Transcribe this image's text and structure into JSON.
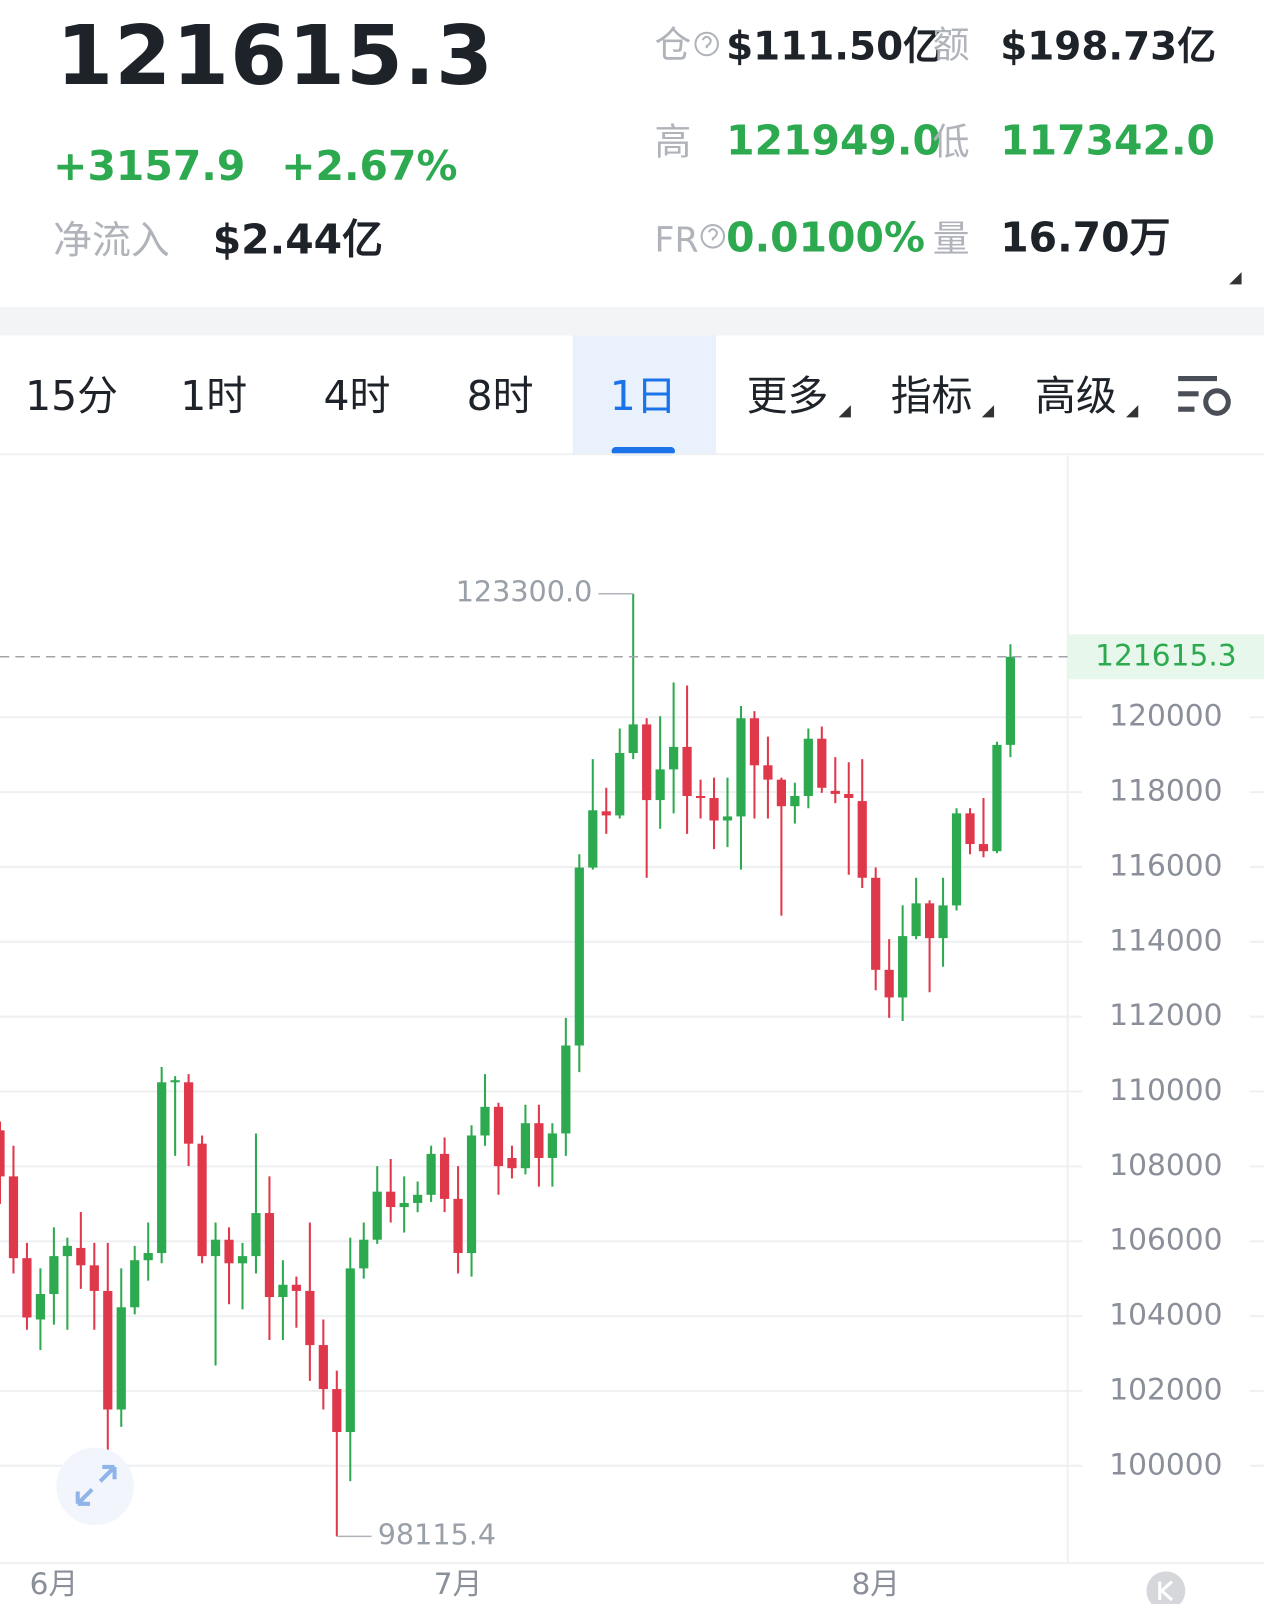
{
  "header": {
    "price": "121615.3",
    "change": "+3157.9",
    "change_pct": "+2.67%",
    "net_inflow_label": "净流入",
    "net_inflow": "$2.44亿",
    "oi_label": "仓",
    "oi": "$111.50亿",
    "amount_label": "额",
    "amount": "$198.73亿",
    "high_label": "高",
    "high": "121949.0",
    "low_label": "低",
    "low": "117342.0",
    "fr_label": "FR",
    "fr": "0.0100%",
    "volume_label": "量",
    "volume": "16.70万"
  },
  "tabs": [
    "15分",
    "1时",
    "4时",
    "8时",
    "1日",
    "更多",
    "指标",
    "高级"
  ],
  "chart_data": {
    "type": "candlestick",
    "categories": [
      null,
      null,
      null,
      null,
      "6月",
      null,
      null,
      null,
      null,
      null,
      null,
      null,
      null,
      null,
      null,
      null,
      null,
      null,
      null,
      null,
      null,
      null,
      null,
      null,
      null,
      null,
      null,
      null,
      null,
      null,
      null,
      null,
      null,
      null,
      "7月",
      null,
      null,
      null,
      null,
      null,
      null,
      null,
      null,
      null,
      null,
      null,
      null,
      null,
      null,
      null,
      null,
      null,
      null,
      null,
      null,
      null,
      null,
      null,
      null,
      null,
      null,
      null,
      null,
      null,
      null,
      "8月",
      null,
      null,
      null,
      null,
      null,
      null,
      null,
      null,
      null,
      null
    ],
    "open": [
      108963,
      107733,
      105548,
      103910,
      104590,
      105603,
      105822,
      105357,
      104673,
      101505,
      104236,
      105493,
      105685,
      110247,
      110247,
      108607,
      105603,
      106041,
      105411,
      105603,
      106753,
      104510,
      104837,
      104673,
      103226,
      102051,
      100903,
      105275,
      106041,
      107325,
      106913,
      107023,
      107241,
      108334,
      107132,
      105685,
      108826,
      109591,
      108225,
      107952,
      109154,
      108225,
      108881,
      111230,
      115984,
      117486,
      117377,
      119044,
      119809,
      117787,
      118607,
      119208,
      117896,
      117842,
      117241,
      117350,
      119973,
      118716,
      118333,
      117623,
      117896,
      119426,
      118033,
      117951,
      117760,
      115711,
      113252,
      112514,
      114153,
      115028,
      114099,
      114973,
      117432,
      116612,
      116421,
      119262
    ],
    "high": [
      109200,
      108550,
      105958,
      105275,
      106370,
      106096,
      106780,
      105958,
      105958,
      105275,
      105876,
      106500,
      110657,
      110411,
      110466,
      108826,
      106500,
      106370,
      105958,
      108880,
      107733,
      105493,
      105056,
      106500,
      103908,
      102542,
      106096,
      106500,
      108006,
      108198,
      107733,
      107596,
      108553,
      108771,
      108006,
      109099,
      110466,
      109700,
      108553,
      109646,
      109646,
      109154,
      111968,
      116339,
      118880,
      118115,
      119700,
      123300,
      119973,
      120027,
      120929,
      120847,
      118333,
      118388,
      118388,
      120301,
      120164,
      119481,
      118388,
      118251,
      119699,
      119754,
      118934,
      118798,
      118880,
      115984,
      114071,
      114973,
      115711,
      115110,
      115711,
      117569,
      117569,
      117842,
      119344,
      121949
    ],
    "low": [
      107000,
      105138,
      103635,
      103090,
      103772,
      103635,
      104728,
      103635,
      100357,
      101040,
      104045,
      104947,
      105411,
      108280,
      108006,
      105411,
      102679,
      104318,
      104181,
      105138,
      103362,
      103362,
      103690,
      102270,
      101505,
      98115.4,
      99592,
      105001,
      105931,
      106500,
      106232,
      106777,
      107050,
      106777,
      105138,
      105056,
      108553,
      107241,
      107678,
      107788,
      107460,
      107460,
      108280,
      110520,
      115929,
      116885,
      117295,
      118880,
      115711,
      117022,
      117432,
      116885,
      117295,
      116476,
      116530,
      115929,
      117295,
      117295,
      114700,
      117159,
      117569,
      117978,
      117705,
      115793,
      115438,
      112706,
      111968,
      111886,
      114071,
      112651,
      113334,
      114837,
      116339,
      116257,
      116366,
      118935
    ],
    "close": [
      107733,
      105548,
      103963,
      104590,
      105603,
      105877,
      105357,
      104673,
      101505,
      104236,
      105493,
      105685,
      110247,
      110302,
      108607,
      105603,
      106041,
      105411,
      105603,
      106753,
      104510,
      104837,
      104673,
      103226,
      102051,
      100903,
      105275,
      106041,
      107325,
      106913,
      107023,
      107241,
      108334,
      107132,
      105685,
      108826,
      109591,
      108006,
      107952,
      109154,
      108225,
      108881,
      111230,
      115984,
      117514,
      117377,
      119044,
      119809,
      117787,
      118607,
      119208,
      117896,
      117842,
      117241,
      117350,
      119973,
      118716,
      118333,
      117623,
      117896,
      119426,
      118115,
      117951,
      117842,
      115711,
      113252,
      112514,
      114153,
      115028,
      114099,
      114973,
      117432,
      116612,
      116421,
      119262,
      121615.3
    ],
    "up_color": "#2daa4f",
    "down_color": "#e0384b",
    "ylim": [
      97400,
      127000
    ],
    "yticks": [
      100000,
      102000,
      104000,
      106000,
      108000,
      110000,
      112000,
      114000,
      116000,
      118000,
      120000
    ],
    "grid": true,
    "annotations": {
      "high": {
        "value": 123300,
        "label": "123300.0"
      },
      "low": 98115.4
    }
  }
}
